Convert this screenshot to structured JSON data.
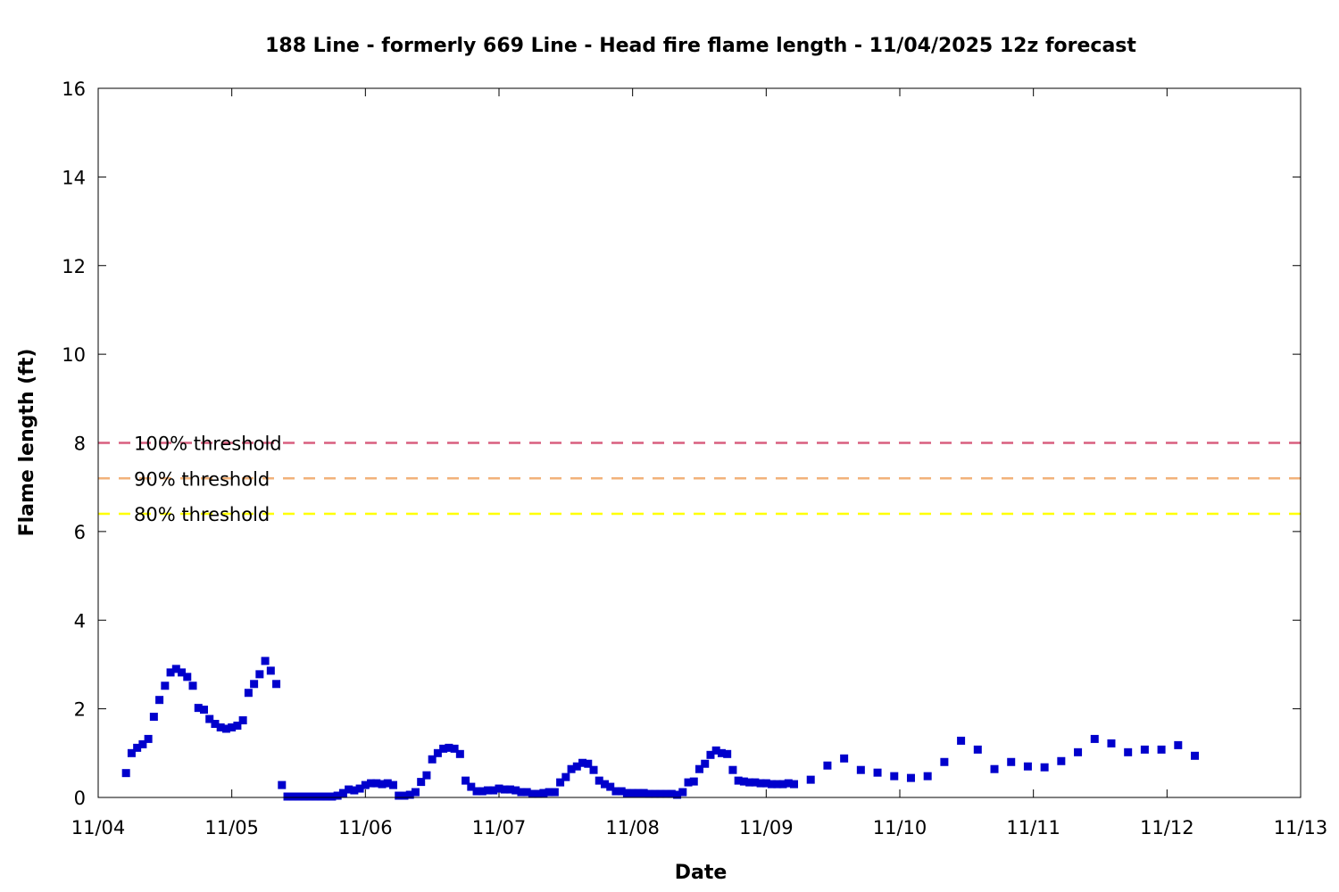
{
  "chart_data": {
    "type": "scatter",
    "title": "188 Line - formerly 669 Line - Head fire flame length - 11/04/2025 12z forecast",
    "xlabel": "Date",
    "ylabel": "Flame length (ft)",
    "x_ticks": [
      "11/04",
      "11/05",
      "11/06",
      "11/07",
      "11/08",
      "11/09",
      "11/10",
      "11/11",
      "11/12",
      "11/13"
    ],
    "y_ticks": [
      "0",
      "2",
      "4",
      "6",
      "8",
      "10",
      "12",
      "14",
      "16"
    ],
    "xlim": [
      "2025-11-04",
      "2025-11-13"
    ],
    "ylim": [
      0,
      16
    ],
    "grid": false,
    "legend_position": "left",
    "thresholds": [
      {
        "label": "100% threshold",
        "value": 8.0,
        "color": "#d95f7f"
      },
      {
        "label": "90% threshold",
        "value": 7.2,
        "color": "#f2b27a"
      },
      {
        "label": "80% threshold",
        "value": 6.4,
        "color": "#ffff00"
      }
    ],
    "series": [
      {
        "color": "#0000cc",
        "points": [
          [
            "2025-11-04 05:00",
            0.55
          ],
          [
            "2025-11-04 06:00",
            1.0
          ],
          [
            "2025-11-04 07:00",
            1.12
          ],
          [
            "2025-11-04 08:00",
            1.2
          ],
          [
            "2025-11-04 09:00",
            1.32
          ],
          [
            "2025-11-04 10:00",
            1.82
          ],
          [
            "2025-11-04 11:00",
            2.2
          ],
          [
            "2025-11-04 12:00",
            2.52
          ],
          [
            "2025-11-04 13:00",
            2.82
          ],
          [
            "2025-11-04 14:00",
            2.9
          ],
          [
            "2025-11-04 15:00",
            2.82
          ],
          [
            "2025-11-04 16:00",
            2.72
          ],
          [
            "2025-11-04 17:00",
            2.52
          ],
          [
            "2025-11-04 18:00",
            2.02
          ],
          [
            "2025-11-04 19:00",
            1.98
          ],
          [
            "2025-11-04 20:00",
            1.77
          ],
          [
            "2025-11-04 21:00",
            1.66
          ],
          [
            "2025-11-04 22:00",
            1.58
          ],
          [
            "2025-11-04 23:00",
            1.55
          ],
          [
            "2025-11-05 00:00",
            1.58
          ],
          [
            "2025-11-05 01:00",
            1.62
          ],
          [
            "2025-11-05 02:00",
            1.74
          ],
          [
            "2025-11-05 03:00",
            2.36
          ],
          [
            "2025-11-05 04:00",
            2.56
          ],
          [
            "2025-11-05 05:00",
            2.78
          ],
          [
            "2025-11-05 06:00",
            3.08
          ],
          [
            "2025-11-05 07:00",
            2.86
          ],
          [
            "2025-11-05 08:00",
            2.56
          ],
          [
            "2025-11-05 09:00",
            0.28
          ],
          [
            "2025-11-05 10:00",
            0.02
          ],
          [
            "2025-11-05 11:00",
            0.02
          ],
          [
            "2025-11-05 12:00",
            0.02
          ],
          [
            "2025-11-05 13:00",
            0.02
          ],
          [
            "2025-11-05 14:00",
            0.02
          ],
          [
            "2025-11-05 15:00",
            0.02
          ],
          [
            "2025-11-05 16:00",
            0.02
          ],
          [
            "2025-11-05 17:00",
            0.02
          ],
          [
            "2025-11-05 18:00",
            0.02
          ],
          [
            "2025-11-05 19:00",
            0.04
          ],
          [
            "2025-11-05 20:00",
            0.1
          ],
          [
            "2025-11-05 21:00",
            0.18
          ],
          [
            "2025-11-05 22:00",
            0.16
          ],
          [
            "2025-11-05 23:00",
            0.2
          ],
          [
            "2025-11-06 00:00",
            0.28
          ],
          [
            "2025-11-06 01:00",
            0.32
          ],
          [
            "2025-11-06 02:00",
            0.32
          ],
          [
            "2025-11-06 03:00",
            0.3
          ],
          [
            "2025-11-06 04:00",
            0.32
          ],
          [
            "2025-11-06 05:00",
            0.28
          ],
          [
            "2025-11-06 06:00",
            0.04
          ],
          [
            "2025-11-06 07:00",
            0.04
          ],
          [
            "2025-11-06 08:00",
            0.06
          ],
          [
            "2025-11-06 09:00",
            0.12
          ],
          [
            "2025-11-06 10:00",
            0.35
          ],
          [
            "2025-11-06 11:00",
            0.5
          ],
          [
            "2025-11-06 12:00",
            0.86
          ],
          [
            "2025-11-06 13:00",
            1.0
          ],
          [
            "2025-11-06 14:00",
            1.1
          ],
          [
            "2025-11-06 15:00",
            1.12
          ],
          [
            "2025-11-06 16:00",
            1.1
          ],
          [
            "2025-11-06 17:00",
            0.98
          ],
          [
            "2025-11-06 18:00",
            0.38
          ],
          [
            "2025-11-06 19:00",
            0.24
          ],
          [
            "2025-11-06 20:00",
            0.14
          ],
          [
            "2025-11-06 21:00",
            0.14
          ],
          [
            "2025-11-06 22:00",
            0.16
          ],
          [
            "2025-11-06 23:00",
            0.16
          ],
          [
            "2025-11-07 00:00",
            0.2
          ],
          [
            "2025-11-07 01:00",
            0.18
          ],
          [
            "2025-11-07 02:00",
            0.18
          ],
          [
            "2025-11-07 03:00",
            0.16
          ],
          [
            "2025-11-07 04:00",
            0.12
          ],
          [
            "2025-11-07 05:00",
            0.12
          ],
          [
            "2025-11-07 06:00",
            0.08
          ],
          [
            "2025-11-07 07:00",
            0.08
          ],
          [
            "2025-11-07 08:00",
            0.1
          ],
          [
            "2025-11-07 09:00",
            0.12
          ],
          [
            "2025-11-07 10:00",
            0.12
          ],
          [
            "2025-11-07 11:00",
            0.34
          ],
          [
            "2025-11-07 12:00",
            0.46
          ],
          [
            "2025-11-07 13:00",
            0.64
          ],
          [
            "2025-11-07 14:00",
            0.7
          ],
          [
            "2025-11-07 15:00",
            0.78
          ],
          [
            "2025-11-07 16:00",
            0.76
          ],
          [
            "2025-11-07 17:00",
            0.62
          ],
          [
            "2025-11-07 18:00",
            0.38
          ],
          [
            "2025-11-07 19:00",
            0.3
          ],
          [
            "2025-11-07 20:00",
            0.24
          ],
          [
            "2025-11-07 21:00",
            0.14
          ],
          [
            "2025-11-07 22:00",
            0.14
          ],
          [
            "2025-11-07 23:00",
            0.1
          ],
          [
            "2025-11-08 00:00",
            0.1
          ],
          [
            "2025-11-08 01:00",
            0.1
          ],
          [
            "2025-11-08 02:00",
            0.1
          ],
          [
            "2025-11-08 03:00",
            0.08
          ],
          [
            "2025-11-08 04:00",
            0.08
          ],
          [
            "2025-11-08 05:00",
            0.08
          ],
          [
            "2025-11-08 06:00",
            0.08
          ],
          [
            "2025-11-08 07:00",
            0.08
          ],
          [
            "2025-11-08 08:00",
            0.06
          ],
          [
            "2025-11-08 09:00",
            0.12
          ],
          [
            "2025-11-08 10:00",
            0.34
          ],
          [
            "2025-11-08 11:00",
            0.36
          ],
          [
            "2025-11-08 12:00",
            0.64
          ],
          [
            "2025-11-08 13:00",
            0.76
          ],
          [
            "2025-11-08 14:00",
            0.96
          ],
          [
            "2025-11-08 15:00",
            1.06
          ],
          [
            "2025-11-08 16:00",
            1.0
          ],
          [
            "2025-11-08 17:00",
            0.98
          ],
          [
            "2025-11-08 18:00",
            0.62
          ],
          [
            "2025-11-08 19:00",
            0.38
          ],
          [
            "2025-11-08 20:00",
            0.36
          ],
          [
            "2025-11-08 21:00",
            0.34
          ],
          [
            "2025-11-08 22:00",
            0.34
          ],
          [
            "2025-11-08 23:00",
            0.32
          ],
          [
            "2025-11-09 00:00",
            0.32
          ],
          [
            "2025-11-09 01:00",
            0.3
          ],
          [
            "2025-11-09 02:00",
            0.3
          ],
          [
            "2025-11-09 03:00",
            0.3
          ],
          [
            "2025-11-09 04:00",
            0.32
          ],
          [
            "2025-11-09 05:00",
            0.3
          ],
          [
            "2025-11-09 08:00",
            0.4
          ],
          [
            "2025-11-09 11:00",
            0.72
          ],
          [
            "2025-11-09 14:00",
            0.88
          ],
          [
            "2025-11-09 17:00",
            0.62
          ],
          [
            "2025-11-09 20:00",
            0.56
          ],
          [
            "2025-11-09 23:00",
            0.48
          ],
          [
            "2025-11-10 02:00",
            0.44
          ],
          [
            "2025-11-10 05:00",
            0.48
          ],
          [
            "2025-11-10 08:00",
            0.8
          ],
          [
            "2025-11-10 11:00",
            1.28
          ],
          [
            "2025-11-10 14:00",
            1.08
          ],
          [
            "2025-11-10 17:00",
            0.64
          ],
          [
            "2025-11-10 20:00",
            0.8
          ],
          [
            "2025-11-10 23:00",
            0.7
          ],
          [
            "2025-11-11 02:00",
            0.68
          ],
          [
            "2025-11-11 05:00",
            0.82
          ],
          [
            "2025-11-11 08:00",
            1.02
          ],
          [
            "2025-11-11 11:00",
            1.32
          ],
          [
            "2025-11-11 14:00",
            1.22
          ],
          [
            "2025-11-11 17:00",
            1.02
          ],
          [
            "2025-11-11 20:00",
            1.08
          ],
          [
            "2025-11-11 23:00",
            1.08
          ],
          [
            "2025-11-12 02:00",
            1.18
          ],
          [
            "2025-11-12 05:00",
            0.94
          ]
        ]
      }
    ]
  }
}
